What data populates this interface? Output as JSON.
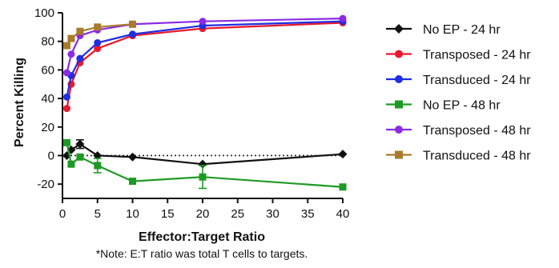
{
  "chart_data": {
    "type": "line",
    "xlabel": "Effector:Target Ratio",
    "ylabel": "Percent Killing",
    "note": "*Note: E:T ratio was total T cells to targets.",
    "xlim": [
      0,
      40
    ],
    "ylim": [
      -30,
      100
    ],
    "xticks": [
      0,
      5,
      10,
      15,
      20,
      25,
      30,
      35,
      40
    ],
    "yticks": [
      -20,
      0,
      20,
      40,
      60,
      80,
      100
    ],
    "reference_line": {
      "y": 0,
      "style": "dotted"
    },
    "legend_position": "right",
    "series": [
      {
        "name": "No EP - 24 hr",
        "color": "#111111",
        "marker": "diamond",
        "points": [
          {
            "x": 0.625,
            "y": 0
          },
          {
            "x": 1.25,
            "y": 4
          },
          {
            "x": 2.5,
            "y": 8,
            "err": 3
          },
          {
            "x": 5,
            "y": 0
          },
          {
            "x": 10,
            "y": -1
          },
          {
            "x": 20,
            "y": -6
          },
          {
            "x": 40,
            "y": 1
          }
        ]
      },
      {
        "name": "Transposed - 24 hr",
        "color": "#e8192c",
        "marker": "circle",
        "points": [
          {
            "x": 0.625,
            "y": 33
          },
          {
            "x": 1.25,
            "y": 50
          },
          {
            "x": 2.5,
            "y": 65
          },
          {
            "x": 5,
            "y": 75
          },
          {
            "x": 10,
            "y": 84
          },
          {
            "x": 20,
            "y": 89
          },
          {
            "x": 40,
            "y": 93
          }
        ]
      },
      {
        "name": "Transduced - 24 hr",
        "color": "#1f2ee0",
        "marker": "circle",
        "points": [
          {
            "x": 0.625,
            "y": 41
          },
          {
            "x": 1.25,
            "y": 56
          },
          {
            "x": 2.5,
            "y": 68
          },
          {
            "x": 5,
            "y": 79
          },
          {
            "x": 10,
            "y": 85
          },
          {
            "x": 20,
            "y": 91
          },
          {
            "x": 40,
            "y": 94
          }
        ]
      },
      {
        "name": "No EP - 48 hr",
        "color": "#1e9a24",
        "marker": "square",
        "points": [
          {
            "x": 0.625,
            "y": 9
          },
          {
            "x": 1.25,
            "y": -6
          },
          {
            "x": 2.5,
            "y": -1
          },
          {
            "x": 5,
            "y": -7,
            "err": 5
          },
          {
            "x": 10,
            "y": -18
          },
          {
            "x": 20,
            "y": -15,
            "err": 8
          },
          {
            "x": 40,
            "y": -22
          }
        ]
      },
      {
        "name": "Transposed - 48 hr",
        "color": "#8a2be2",
        "marker": "circle",
        "points": [
          {
            "x": 0.625,
            "y": 58
          },
          {
            "x": 1.25,
            "y": 71
          },
          {
            "x": 2.5,
            "y": 84
          },
          {
            "x": 5,
            "y": 88
          },
          {
            "x": 10,
            "y": 92
          },
          {
            "x": 20,
            "y": 94
          },
          {
            "x": 40,
            "y": 96
          }
        ]
      },
      {
        "name": "Transduced - 48 hr",
        "color": "#a87b2c",
        "marker": "square",
        "points": [
          {
            "x": 0.625,
            "y": 77
          },
          {
            "x": 1.25,
            "y": 82
          },
          {
            "x": 2.5,
            "y": 87
          },
          {
            "x": 5,
            "y": 90
          },
          {
            "x": 10,
            "y": 92
          }
        ]
      }
    ]
  }
}
